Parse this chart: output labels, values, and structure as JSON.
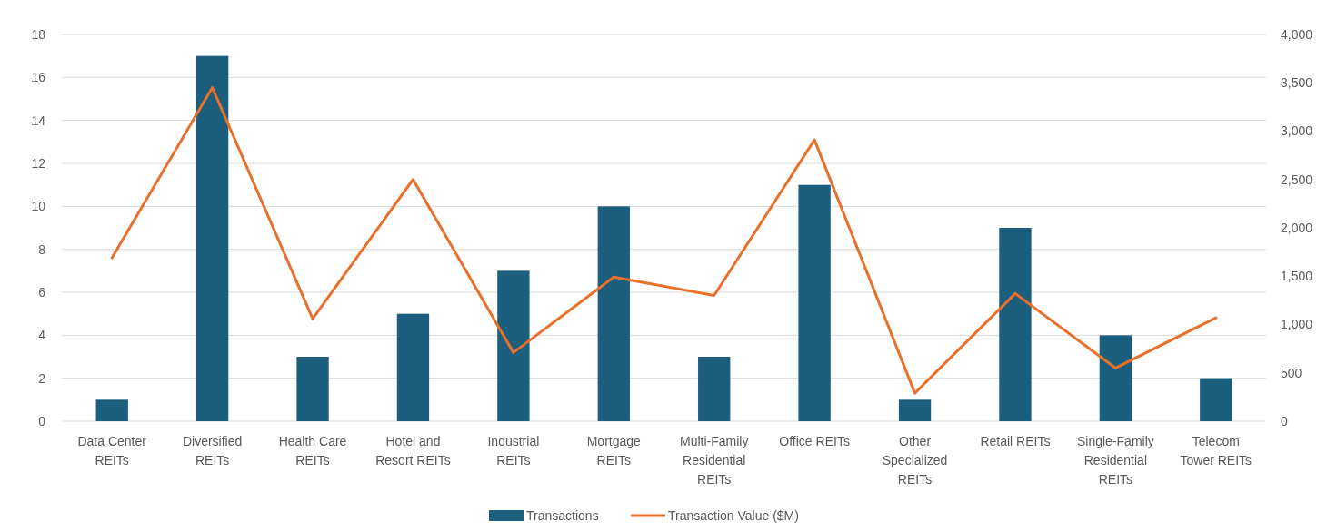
{
  "chart_data": {
    "type": "bar",
    "categories": [
      "Data Center REITs",
      "Diversified REITs",
      "Health Care REITs",
      "Hotel and Resort REITs",
      "Industrial REITs",
      "Mortgage REITs",
      "Multi-Family Residential REITs",
      "Office REITs",
      "Other Specialized REITs",
      "Retail REITs",
      "Single-Family Residential REITs",
      "Telecom Tower REITs"
    ],
    "series": [
      {
        "name": "Transactions",
        "color": "#1b5e7e",
        "values": [
          1,
          17,
          3,
          5,
          7,
          10,
          3,
          11,
          1,
          9,
          4,
          2
        ]
      },
      {
        "name": "Transaction Value ($M)",
        "type": "line",
        "axis": "y2",
        "color": "#e8702a",
        "values": [
          1690,
          3450,
          1060,
          2500,
          710,
          1490,
          1300,
          2910,
          290,
          1320,
          550,
          1070
        ]
      }
    ],
    "ylim": [
      0,
      18
    ],
    "yticks": [
      0,
      2,
      4,
      6,
      8,
      10,
      12,
      14,
      16,
      18
    ],
    "y2lim": [
      0,
      4000
    ],
    "y2ticks": [
      0,
      {
        "value": 500,
        "label": "500"
      },
      {
        "value": 1000,
        "label": "1,000"
      },
      {
        "value": 1500,
        "label": "1,500"
      },
      {
        "value": 2000,
        "label": "2,000"
      },
      {
        "value": 2500,
        "label": "2,500"
      },
      {
        "value": 3000,
        "label": "3,000"
      },
      {
        "value": 3500,
        "label": "3,500"
      },
      {
        "value": 4000,
        "label": "4,000"
      }
    ],
    "grid": "y",
    "legend": "bottom",
    "marker": "none",
    "line_style": "solid"
  }
}
